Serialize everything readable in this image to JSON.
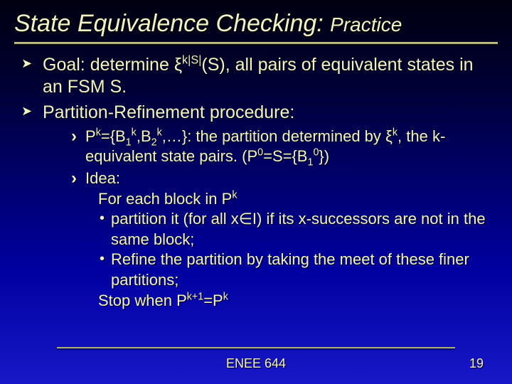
{
  "title_main": "State Equivalence Checking:",
  "title_sub": "Practice",
  "bullets": {
    "b1_pre": "Goal: determine ξ",
    "b1_sup": "|S|",
    "b1_post": "(S), all pairs of equivalent states in an FSM S.",
    "b2": "Partition-Refinement procedure:"
  },
  "sub": {
    "s1_a": "P",
    "s1_b": "={B",
    "s1_c": ",B",
    "s1_d": ",…}: the partition determined by ξ",
    "s1_e": ", the k-equivalent state pairs. (P",
    "s1_f": "=S={B",
    "s1_g": "})",
    "s2": "Idea:",
    "idea_l1_a": "For each block in P",
    "idea_dot1": "partition it (for all x∈I) if its x-successors are not in the same block;",
    "idea_dot2": "Refine the partition by taking the meet of these finer partitions;",
    "idea_stop_a": "Stop when P",
    "idea_stop_b": "=P"
  },
  "sup": {
    "k": "k",
    "zero": "0",
    "kplus1": "k+1"
  },
  "subscr": {
    "one": "1",
    "two": "2"
  },
  "footer": {
    "course": "ENEE 644",
    "page": "19"
  },
  "colors": {
    "text": "#f2f2c2",
    "bg_top": "#000010",
    "bg_bottom": "#1818c8",
    "rule": "#b0b070"
  }
}
